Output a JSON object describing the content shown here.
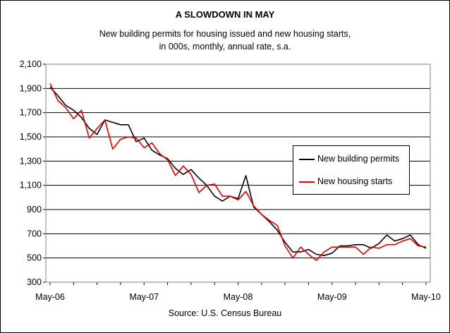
{
  "chart_data": {
    "type": "line",
    "title": "A SLOWDOWN IN MAY",
    "subtitle_line1": "New building permits for housing issued and new housing starts,",
    "subtitle_line2": "in 000s, monthly, annual rate, s.a.",
    "source": "Source: U.S. Census Bureau",
    "ylim": [
      300,
      2100
    ],
    "yticks": [
      300,
      500,
      700,
      900,
      1100,
      1300,
      1500,
      1700,
      1900,
      2100
    ],
    "ytick_labels": [
      "300",
      "500",
      "700",
      "900",
      "1,100",
      "1,300",
      "1,500",
      "1,700",
      "1,900",
      "2,100"
    ],
    "xticks": [
      {
        "index": 0,
        "label": "May-06"
      },
      {
        "index": 12,
        "label": "May-07"
      },
      {
        "index": 24,
        "label": "May-08"
      },
      {
        "index": 36,
        "label": "May-09"
      },
      {
        "index": 48,
        "label": "May-10"
      }
    ],
    "grid": "horizontal",
    "legend_position": "right",
    "series": [
      {
        "name": "New building permits",
        "color": "#000000",
        "values": [
          1910,
          1840,
          1760,
          1720,
          1660,
          1570,
          1520,
          1640,
          1620,
          1600,
          1600,
          1460,
          1490,
          1390,
          1350,
          1320,
          1240,
          1190,
          1230,
          1160,
          1100,
          1010,
          970,
          1010,
          990,
          1180,
          920,
          860,
          800,
          730,
          630,
          550,
          550,
          570,
          530,
          520,
          540,
          600,
          600,
          610,
          610,
          580,
          620,
          690,
          640,
          660,
          690,
          610,
          580
        ]
      },
      {
        "name": "New housing starts",
        "color": "#e00000",
        "values": [
          1940,
          1800,
          1740,
          1650,
          1720,
          1490,
          1570,
          1640,
          1400,
          1480,
          1500,
          1490,
          1410,
          1450,
          1360,
          1310,
          1180,
          1260,
          1190,
          1040,
          1100,
          1110,
          1010,
          1010,
          980,
          1050,
          930,
          860,
          810,
          770,
          600,
          500,
          590,
          530,
          480,
          550,
          590,
          590,
          590,
          590,
          530,
          590,
          580,
          610,
          610,
          640,
          660,
          600,
          590
        ]
      }
    ]
  }
}
